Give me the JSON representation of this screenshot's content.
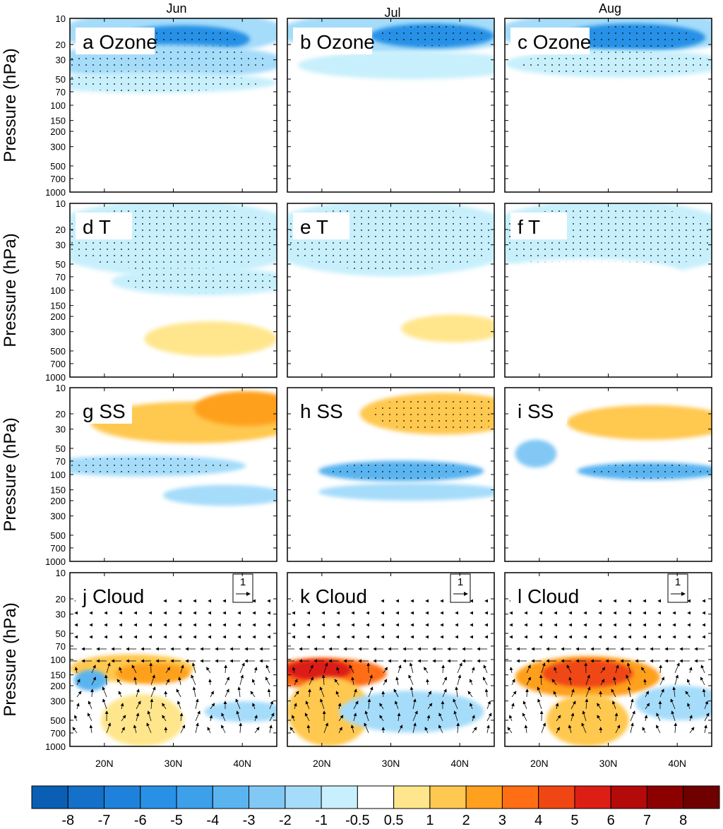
{
  "chart_data": {
    "type": "heatmap",
    "description_months": [
      "Jun",
      "Jul",
      "Aug"
    ],
    "ylabel": "Pressure (hPa)",
    "y_ticks": [
      "10",
      "20",
      "30",
      "50",
      "70",
      "100",
      "150",
      "200",
      "300",
      "500",
      "700",
      "1000"
    ],
    "x_ticks": [
      "20N",
      "30N",
      "40N"
    ],
    "x_range": [
      15,
      45
    ],
    "y_range": [
      1000,
      10
    ],
    "vector_reference": {
      "label": "1",
      "arrow": "→"
    },
    "panels": [
      {
        "label": "a Ozone",
        "row": 0,
        "col": 0
      },
      {
        "label": "b Ozone",
        "row": 0,
        "col": 1
      },
      {
        "label": "c Ozone",
        "row": 0,
        "col": 2
      },
      {
        "label": "d T",
        "row": 1,
        "col": 0
      },
      {
        "label": "e T",
        "row": 1,
        "col": 1
      },
      {
        "label": "f T",
        "row": 1,
        "col": 2
      },
      {
        "label": "g SS",
        "row": 2,
        "col": 0
      },
      {
        "label": "h SS",
        "row": 2,
        "col": 1
      },
      {
        "label": "i SS",
        "row": 2,
        "col": 2
      },
      {
        "label": "j Cloud",
        "row": 3,
        "col": 0
      },
      {
        "label": "k Cloud",
        "row": 3,
        "col": 1
      },
      {
        "label": "l Cloud",
        "row": 3,
        "col": 2
      }
    ],
    "colorbar": {
      "labels": [
        "-8",
        "-7",
        "-6",
        "-5",
        "-4",
        "-3",
        "-2",
        "-1",
        "-0.5",
        "0.5",
        "1",
        "2",
        "3",
        "4",
        "5",
        "6",
        "7",
        "8"
      ],
      "colors": [
        "#0a5fb4",
        "#1470c8",
        "#1e82dc",
        "#2891e6",
        "#3ca0eb",
        "#5ab4f0",
        "#82c8f5",
        "#a5dcfa",
        "#c8f0fc",
        "#ffffff",
        "#ffe68c",
        "#ffc850",
        "#ffa01e",
        "#ff6e14",
        "#f04614",
        "#dc1e14",
        "#b40a0a",
        "#8c0000",
        "#6e0000"
      ]
    }
  }
}
